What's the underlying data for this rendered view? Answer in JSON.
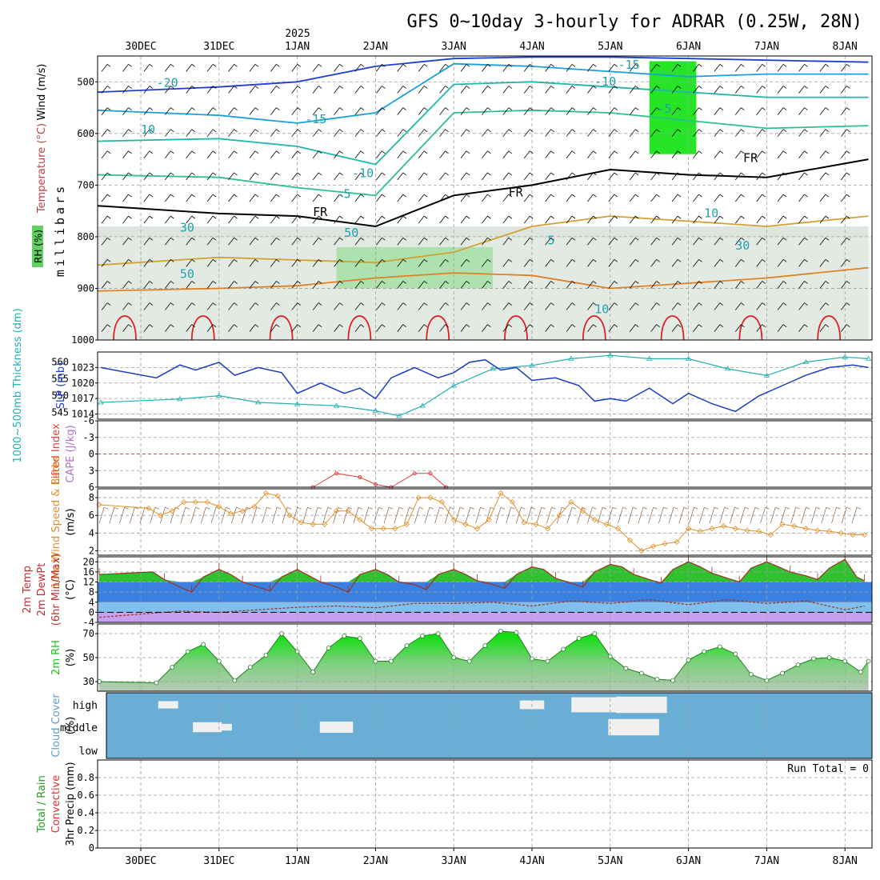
{
  "title": "GFS 0~10day 3-hourly for ADRAR (0.25W, 28N)",
  "time_axis": {
    "year_label": "2025",
    "day_labels": [
      "30DEC",
      "31DEC",
      "1JAN",
      "2JAN",
      "3JAN",
      "4JAN",
      "5JAN",
      "6JAN",
      "7JAN",
      "8JAN"
    ]
  },
  "run_total": "Run Total = 0",
  "colors": {
    "temp_cold": "#1f3fd0",
    "temp_cool": "#1aa0e0",
    "temp_mild": "#20b8a8",
    "temp_warm": "#e08c20",
    "temp_hot": "#e02020",
    "freezing": "#000000",
    "rh_light": "#e8f0e8",
    "rh_mid": "#c8d4c8",
    "rh_high": "#60d060",
    "rh_sat": "#00e000",
    "slp": "#1a3cc8",
    "thickness": "#20b0b0",
    "lifted_index": "#e04040",
    "wind": "#e0902a",
    "rh2m": "#20c020",
    "cloud_bg": "#6aaed6",
    "cloud_fill": "#f0f0f0",
    "temp_band_green": "#30c030",
    "temp_band_blue": "#3a80e0",
    "temp_band_lightblue": "#80c0f0",
    "temp_band_purple": "#c8a0f0"
  },
  "chart_data": [
    {
      "type": "heatmap",
      "panel": "upper-air cross section",
      "ylabel": "millibars",
      "side_labels": [
        "Wind (m/s)",
        "Temperature (°C)",
        "RH (%)"
      ],
      "y_ticks": [
        500,
        600,
        700,
        800,
        900,
        1000
      ],
      "ylim": [
        1000,
        450
      ],
      "isotherm_labels": [
        {
          "text": "-20",
          "day": 0.2,
          "level": 510
        },
        {
          "text": "-15",
          "day": 2.1,
          "level": 580
        },
        {
          "text": "-15",
          "day": 6.1,
          "level": 475
        },
        {
          "text": "-10",
          "day": 2.7,
          "level": 685
        },
        {
          "text": "-10",
          "day": 5.8,
          "level": 507
        },
        {
          "text": "-5",
          "day": 2.5,
          "level": 725
        },
        {
          "text": "-5",
          "day": 6.6,
          "level": 560
        },
        {
          "text": "FR",
          "day": 2.2,
          "level": 760
        },
        {
          "text": "FR",
          "day": 4.7,
          "level": 722
        },
        {
          "text": "FR",
          "day": 7.7,
          "level": 655
        },
        {
          "text": "5",
          "day": 5.2,
          "level": 815
        },
        {
          "text": "10",
          "day": 5.8,
          "level": 948
        },
        {
          "text": "30",
          "day": 7.6,
          "level": 825
        },
        {
          "text": "10",
          "day": 7.2,
          "level": 762
        },
        {
          "text": "50",
          "day": 0.5,
          "level": 880
        },
        {
          "text": "30",
          "day": 0.5,
          "level": 790
        },
        {
          "text": "10",
          "day": 0.0,
          "level": 600
        },
        {
          "text": "50",
          "day": 2.6,
          "level": 800
        }
      ],
      "isotherms": [
        {
          "label": "-20",
          "color": "#1f3fd0",
          "days": [
            0,
            1,
            2,
            3,
            4,
            5,
            6,
            7,
            8,
            9.3
          ],
          "levels": [
            520,
            510,
            500,
            470,
            455,
            452,
            452,
            455,
            458,
            462
          ]
        },
        {
          "label": "-15",
          "color": "#1aa0e0",
          "days": [
            0,
            1,
            2,
            3,
            4,
            5,
            6,
            7,
            8,
            9.3
          ],
          "levels": [
            555,
            565,
            580,
            560,
            465,
            470,
            480,
            490,
            485,
            485
          ]
        },
        {
          "label": "-10",
          "color": "#20b8a8",
          "days": [
            0,
            1,
            2,
            3,
            4,
            5,
            6,
            7,
            8,
            9.3
          ],
          "levels": [
            615,
            610,
            625,
            660,
            505,
            500,
            510,
            520,
            530,
            530
          ]
        },
        {
          "label": "-5",
          "color": "#2ec08a",
          "days": [
            0,
            1,
            2,
            3,
            4,
            5,
            6,
            7,
            8,
            9.3
          ],
          "levels": [
            680,
            685,
            705,
            720,
            560,
            555,
            560,
            575,
            590,
            585
          ]
        },
        {
          "label": "FR",
          "color": "#000000",
          "days": [
            0,
            1,
            2,
            3,
            4,
            5,
            6,
            7,
            8,
            9.3
          ],
          "levels": [
            740,
            755,
            760,
            780,
            720,
            700,
            670,
            680,
            685,
            650
          ]
        },
        {
          "label": "5",
          "color": "#d4a030",
          "days": [
            0,
            1,
            2,
            3,
            4,
            5,
            6,
            7,
            8,
            9.3
          ],
          "levels": [
            855,
            840,
            845,
            850,
            830,
            780,
            760,
            770,
            780,
            760
          ]
        },
        {
          "label": "10",
          "color": "#e08020",
          "days": [
            0,
            1,
            2,
            3,
            4,
            5,
            6,
            7,
            8,
            9.3
          ],
          "levels": [
            905,
            900,
            895,
            880,
            870,
            875,
            900,
            890,
            880,
            860
          ]
        }
      ],
      "rh_regions": [
        {
          "level_range": [
            780,
            1000
          ],
          "days": [
            0,
            9.3
          ],
          "rh": 50
        },
        {
          "level_range": [
            820,
            900
          ],
          "days": [
            2.5,
            4.5
          ],
          "rh": 80
        },
        {
          "level_range": [
            460,
            640
          ],
          "days": [
            6.5,
            7.1
          ],
          "rh": 90
        }
      ]
    },
    {
      "type": "line",
      "panel": "sea level pressure and thickness",
      "side_labels": [
        "1000~500mb Thickness (dm)",
        "SLP (mb)"
      ],
      "series": [
        {
          "name": "SLP (mb)",
          "color": "#1a3cc8",
          "y_ticks": [
            1014,
            1017,
            1020,
            1023
          ],
          "ylim": [
            1013,
            1026
          ],
          "days": [
            0,
            0.2,
            0.5,
            0.7,
            1.0,
            1.2,
            1.5,
            1.8,
            2.0,
            2.3,
            2.6,
            2.8,
            3.0,
            3.2,
            3.5,
            3.8,
            4.0,
            4.2,
            4.4,
            4.6,
            4.8,
            5.0,
            5.3,
            5.6,
            5.8,
            6.0,
            6.2,
            6.5,
            6.8,
            7.0,
            7.3,
            7.6,
            7.9,
            8.2,
            8.5,
            8.8,
            9.1,
            9.3
          ],
          "values": [
            1023,
            1021,
            1023.5,
            1022.5,
            1024,
            1021.5,
            1023,
            1022,
            1018,
            1020,
            1018,
            1019,
            1017,
            1021,
            1023,
            1021,
            1022,
            1024,
            1024.5,
            1022.5,
            1023,
            1020.5,
            1021,
            1019.5,
            1016.5,
            1017,
            1016.5,
            1019,
            1016,
            1018,
            1016,
            1014.5,
            1017.5,
            1019.5,
            1021.5,
            1023,
            1023.5,
            1023
          ]
        },
        {
          "name": "Thickness (dm)",
          "color": "#20b0b0",
          "y_ticks": [
            545,
            550,
            555,
            560
          ],
          "ylim": [
            543,
            563
          ],
          "days": [
            0,
            0.5,
            1.0,
            1.5,
            2.0,
            2.5,
            3.0,
            3.3,
            3.6,
            4.0,
            4.5,
            5.0,
            5.5,
            6.0,
            6.5,
            7.0,
            7.5,
            8.0,
            8.5,
            9.0,
            9.3
          ],
          "values": [
            548,
            549,
            550,
            548,
            547.5,
            547,
            545.5,
            544,
            547,
            553,
            558,
            559,
            561,
            562,
            561,
            561,
            558,
            556,
            560,
            561.5,
            561
          ]
        }
      ]
    },
    {
      "type": "line",
      "panel": "instability",
      "side_labels": [
        "Lifted Index",
        "CAPE (J/kg)"
      ],
      "y_ticks": [
        -6,
        -3,
        0,
        3,
        6
      ],
      "ylim": [
        6,
        -6
      ],
      "series": [
        {
          "name": "Lifted Index",
          "color": "#e04040",
          "days": [
            2.2,
            2.5,
            2.8,
            3.0,
            3.2,
            3.5,
            3.7,
            3.9
          ],
          "values": [
            6,
            3.5,
            4.2,
            5.5,
            6,
            3.5,
            3.5,
            6
          ]
        }
      ]
    },
    {
      "type": "line",
      "panel": "10m wind",
      "side_labels": [
        "10m Wind Speed & Barbs",
        "(m/s)"
      ],
      "y_ticks": [
        2,
        4,
        6,
        8
      ],
      "ylim": [
        1.5,
        9
      ],
      "series": [
        {
          "name": "10m Wind Speed",
          "color": "#e0902a",
          "days": [
            0,
            0.1,
            0.25,
            0.4,
            0.55,
            0.7,
            0.85,
            1.0,
            1.15,
            1.3,
            1.45,
            1.6,
            1.75,
            1.9,
            2.05,
            2.2,
            2.35,
            2.5,
            2.65,
            2.8,
            2.95,
            3.1,
            3.25,
            3.4,
            3.55,
            3.7,
            3.85,
            4.0,
            4.15,
            4.3,
            4.45,
            4.6,
            4.75,
            4.9,
            5.05,
            5.2,
            5.35,
            5.5,
            5.65,
            5.8,
            5.95,
            6.1,
            6.25,
            6.4,
            6.55,
            6.7,
            6.85,
            7.0,
            7.15,
            7.3,
            7.45,
            7.6,
            7.75,
            7.9,
            8.05,
            8.2,
            8.35,
            8.5,
            8.65,
            8.8,
            8.95,
            9.1,
            9.25
          ],
          "values": [
            7.2,
            6.8,
            6.0,
            6.5,
            7.5,
            7.5,
            7.5,
            7.0,
            6.2,
            6.5,
            7.0,
            8.5,
            8.2,
            6.0,
            5.2,
            5.0,
            5.0,
            6.5,
            6.5,
            5.5,
            4.5,
            4.5,
            4.5,
            5.0,
            8.0,
            8.0,
            7.5,
            5.5,
            5.0,
            4.5,
            5.5,
            8.5,
            7.5,
            5.2,
            5.0,
            4.5,
            6.0,
            7.5,
            6.5,
            5.5,
            5.0,
            4.5,
            3.2,
            2.0,
            2.5,
            2.8,
            3.0,
            4.5,
            4.2,
            4.5,
            4.8,
            4.5,
            4.3,
            4.2,
            3.8,
            5.0,
            4.8,
            4.5,
            4.3,
            4.2,
            4.0,
            3.8,
            3.8
          ]
        }
      ]
    },
    {
      "type": "area",
      "panel": "2m temperature",
      "side_labels": [
        "2m Temp",
        "2m DewPt",
        "(6hr Min/Max)",
        "(°C)"
      ],
      "y_ticks": [
        -4,
        0,
        4,
        8,
        12,
        16,
        20
      ],
      "ylim": [
        -4,
        22
      ],
      "series": [
        {
          "name": "2m Temp",
          "color": "#a03020",
          "days": [
            0,
            0.15,
            0.3,
            0.5,
            0.65,
            0.8,
            1.0,
            1.15,
            1.3,
            1.5,
            1.65,
            1.8,
            2.0,
            2.15,
            2.3,
            2.5,
            2.65,
            2.8,
            3.0,
            3.15,
            3.3,
            3.5,
            3.65,
            3.8,
            4.0,
            4.15,
            4.3,
            4.5,
            4.65,
            4.8,
            5.0,
            5.15,
            5.3,
            5.5,
            5.65,
            5.8,
            6.0,
            6.15,
            6.3,
            6.5,
            6.65,
            6.8,
            7.0,
            7.15,
            7.3,
            7.5,
            7.65,
            7.8,
            8.0,
            8.15,
            8.3,
            8.5,
            8.65,
            8.8,
            9.0,
            9.15,
            9.25
          ],
          "values": [
            15,
            16,
            13,
            10,
            8,
            14,
            17,
            15,
            12,
            10,
            8.5,
            14,
            17,
            14.5,
            12,
            10,
            8,
            15,
            17,
            15,
            12,
            11,
            9,
            15,
            17,
            15,
            12.5,
            11,
            9.5,
            15,
            18,
            17,
            13.5,
            11.5,
            10,
            16,
            19,
            18,
            15,
            13,
            11.5,
            17,
            20,
            18,
            15.5,
            13.5,
            12,
            17.5,
            20,
            18,
            16,
            14.5,
            13,
            17.5,
            21,
            14,
            12.5
          ]
        },
        {
          "name": "2m DewPt",
          "color": "#a03020",
          "days": [
            0,
            0.5,
            1.0,
            1.5,
            2.0,
            2.5,
            3.0,
            3.5,
            4.0,
            4.5,
            5.0,
            5.5,
            6.0,
            6.5,
            7.0,
            7.5,
            8.0,
            8.5,
            9.0,
            9.25
          ],
          "values": [
            -2,
            0.5,
            0,
            1,
            2,
            2.5,
            1.8,
            3.5,
            3.5,
            4,
            2.5,
            4.5,
            3.5,
            5,
            3,
            5,
            3.5,
            4.5,
            1,
            2.5
          ]
        }
      ]
    },
    {
      "type": "area",
      "panel": "2m relative humidity",
      "side_labels": [
        "2m RH",
        "(%)"
      ],
      "y_ticks": [
        30,
        50,
        70
      ],
      "ylim": [
        22,
        78
      ],
      "series": [
        {
          "name": "2m RH",
          "color": "#20c020",
          "days": [
            0,
            0.2,
            0.4,
            0.6,
            0.8,
            1.0,
            1.2,
            1.4,
            1.6,
            1.8,
            2.0,
            2.2,
            2.4,
            2.6,
            2.8,
            3.0,
            3.2,
            3.4,
            3.6,
            3.8,
            4.0,
            4.2,
            4.4,
            4.6,
            4.8,
            5.0,
            5.2,
            5.4,
            5.6,
            5.8,
            6.0,
            6.2,
            6.4,
            6.6,
            6.8,
            7.0,
            7.2,
            7.4,
            7.6,
            7.8,
            8.0,
            8.2,
            8.4,
            8.6,
            8.8,
            9.0,
            9.2,
            9.3
          ],
          "values": [
            30,
            29,
            42,
            55,
            61,
            47,
            31,
            42,
            52,
            70,
            55,
            38,
            58,
            68,
            66,
            47,
            47,
            60,
            68,
            70,
            50,
            47,
            60,
            72,
            71,
            49,
            47,
            57,
            66,
            70,
            51,
            41,
            37,
            32,
            31,
            48,
            55,
            59,
            53,
            36,
            31,
            37,
            44,
            49,
            50,
            47,
            38,
            47
          ]
        }
      ]
    },
    {
      "type": "heatmap",
      "panel": "cloud cover",
      "side_labels": [
        "Cloud Cover",
        "(%)"
      ],
      "y_ticks": [
        "high",
        "middle",
        "low"
      ],
      "cells": [
        {
          "day": 0.35,
          "layer": "high",
          "value": 20
        },
        {
          "day": 0.85,
          "layer": "middle",
          "value": 40
        },
        {
          "day": 1.05,
          "layer": "middle",
          "value": 15
        },
        {
          "day": 2.5,
          "layer": "middle",
          "value": 50
        },
        {
          "day": 5.0,
          "layer": "high",
          "value": 30
        },
        {
          "day": 5.8,
          "layer": "high",
          "value": 80
        },
        {
          "day": 6.4,
          "layer": "high",
          "value": 90
        },
        {
          "day": 6.3,
          "layer": "middle",
          "value": 90
        }
      ]
    },
    {
      "type": "bar",
      "panel": "precipitation",
      "side_labels": [
        "Total / Rain",
        "Convective",
        "3hr Precip (mm)"
      ],
      "y_ticks": [
        0,
        0.2,
        0.4,
        0.6,
        0.8
      ],
      "ylim": [
        0,
        1
      ],
      "values": []
    }
  ]
}
